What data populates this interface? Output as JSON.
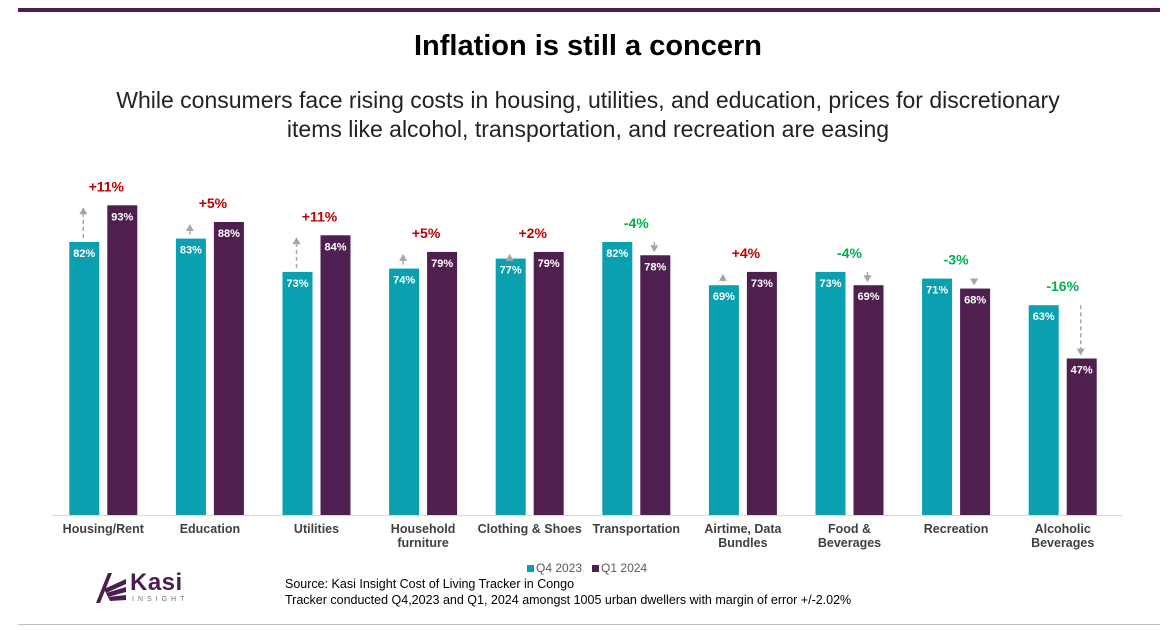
{
  "header": {
    "title": "Inflation is still a concern",
    "subtitle": "While consumers face rising costs in housing, utilities, and education, prices for discretionary items like alcohol, transportation, and recreation are easing"
  },
  "colors": {
    "series_q4": "#0aa0b0",
    "series_q1": "#4f1f4f",
    "increase": "#c00000",
    "decrease": "#00b050",
    "arrow": "#a6a6a6",
    "brand": "#4a1f4f"
  },
  "chart_data": {
    "type": "bar",
    "categories": [
      "Housing/Rent",
      "Education",
      "Utilities",
      "Household furniture",
      "Clothing & Shoes",
      "Transportation",
      "Airtime, Data Bundles",
      "Food & Beverages",
      "Recreation",
      "Alcoholic Beverages"
    ],
    "category_lines": [
      [
        "Housing/Rent"
      ],
      [
        "Education"
      ],
      [
        "Utilities"
      ],
      [
        "Household",
        "furniture"
      ],
      [
        "Clothing & Shoes"
      ],
      [
        "Transportation"
      ],
      [
        "Airtime, Data",
        "Bundles"
      ],
      [
        "Food &",
        "Beverages"
      ],
      [
        "Recreation"
      ],
      [
        "Alcoholic",
        "Beverages"
      ]
    ],
    "series": [
      {
        "name": "Q4 2023",
        "values": [
          82,
          83,
          73,
          74,
          77,
          82,
          69,
          73,
          71,
          63
        ],
        "labels": [
          "82%",
          "83%",
          "73%",
          "74%",
          "77%",
          "82%",
          "69%",
          "73%",
          "71%",
          "63%"
        ]
      },
      {
        "name": "Q1 2024",
        "values": [
          93,
          88,
          84,
          79,
          79,
          78,
          73,
          69,
          68,
          47
        ],
        "labels": [
          "93%",
          "88%",
          "84%",
          "79%",
          "79%",
          "78%",
          "73%",
          "69%",
          "68%",
          "47%"
        ]
      }
    ],
    "changes": [
      "+11%",
      "+5%",
      "+11%",
      "+5%",
      "+2%",
      "-4%",
      "+4%",
      "-4%",
      "-3%",
      "-16%"
    ],
    "ylim": [
      0,
      100
    ],
    "legend_position": "bottom"
  },
  "legend": {
    "q4_label": "Q4 2023",
    "q1_label": "Q1 2024"
  },
  "logo": {
    "name": "Kasi",
    "tagline": "INSIGHT"
  },
  "source": {
    "line1": "Source: Kasi Insight Cost of Living Tracker in Congo",
    "line2": "Tracker conducted  Q4,2023  and Q1, 2024 amongst 1005 urban dwellers with margin of error +/-2.02%"
  }
}
